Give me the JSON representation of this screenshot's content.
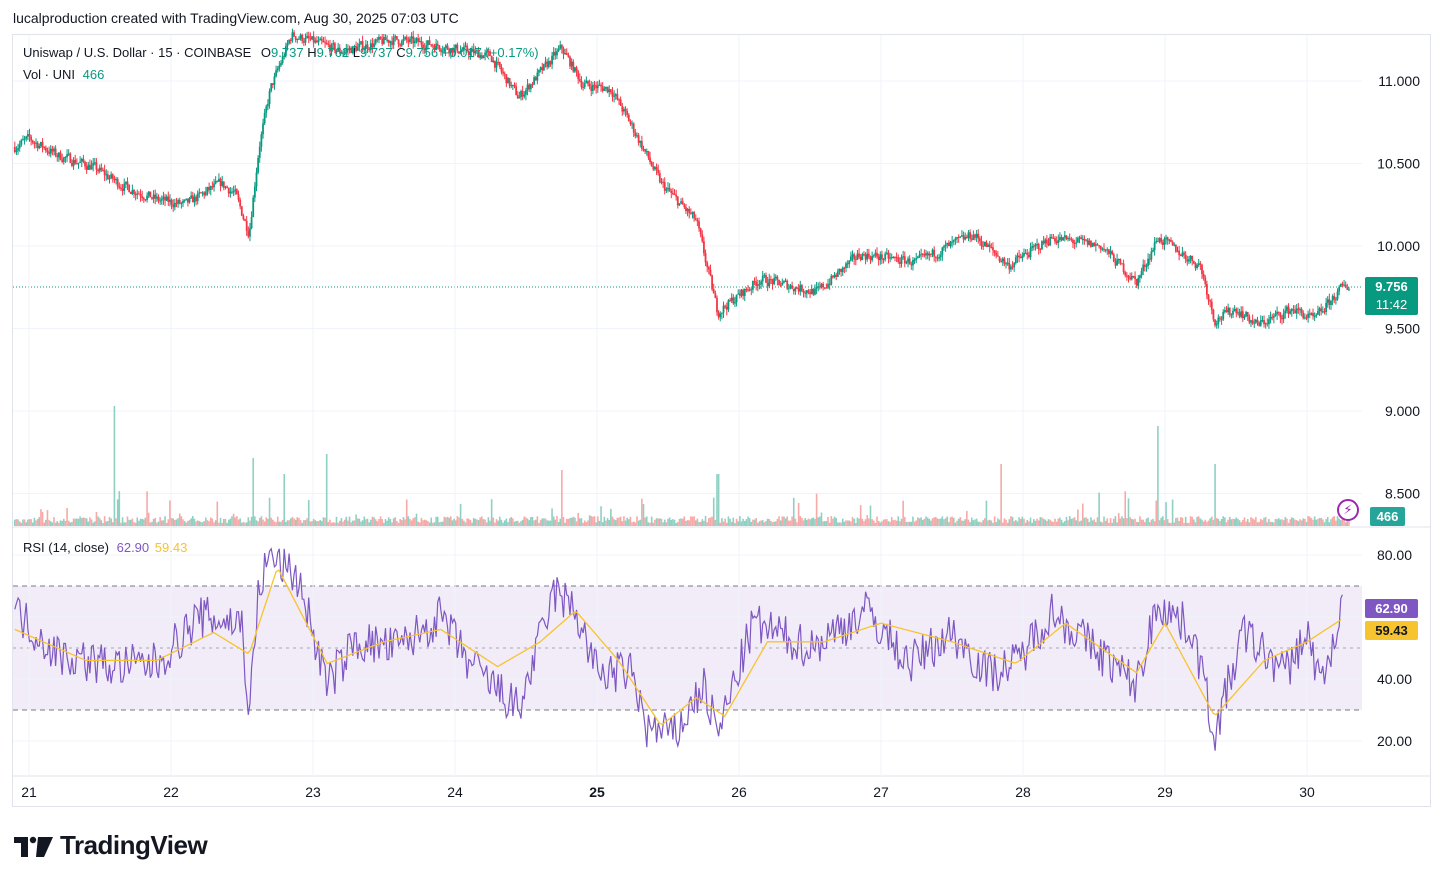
{
  "caption": "lucalproduction created with TradingView.com, Aug 30, 2025 07:03 UTC",
  "legend": {
    "symbol": "Uniswap / U.S. Dollar · 15 · COINBASE",
    "o_label": "O",
    "o_value": "9.737",
    "h_label": "H",
    "h_value": "9.762",
    "l_label": "L",
    "l_value": "9.737",
    "c_label": "C",
    "c_value": "9.756",
    "change": "+0.017 (+0.17%)",
    "vol_label": "Vol · UNI",
    "vol_value": "466",
    "rsi_label": "RSI (14, close)",
    "rsi_value": "62.90",
    "rsi_ma_value": "59.43"
  },
  "tags": {
    "price": "9.756",
    "countdown": "11:42",
    "volume": "466",
    "rsi": "62.90",
    "rsi_ma": "59.43"
  },
  "branding": "TradingView",
  "colors": {
    "up": "#089981",
    "down": "#f23645",
    "rsi": "#7e57c2",
    "rsi_ma": "#f7c32e",
    "rsi_band": "#ede7f6",
    "grid": "#f0f3fa",
    "vol_up": "#8fd0c3",
    "vol_down": "#f7a9a7"
  },
  "chart_data": [
    {
      "type": "candlestick",
      "title": "Uniswap / U.S. Dollar · 15 · COINBASE",
      "x_ticks": [
        "21",
        "22",
        "23",
        "24",
        "25",
        "26",
        "27",
        "28",
        "29",
        "30"
      ],
      "y_ticks": [
        "11.000",
        "10.500",
        "10.000",
        "9.500",
        "9.000",
        "8.500"
      ],
      "ylim": [
        8.3,
        11.3
      ],
      "last_price": 9.756,
      "price_path": [
        {
          "x": 20.9,
          "y": 10.6
        },
        {
          "x": 21.0,
          "y": 10.65
        },
        {
          "x": 21.2,
          "y": 10.55
        },
        {
          "x": 21.45,
          "y": 10.48
        },
        {
          "x": 21.65,
          "y": 10.37
        },
        {
          "x": 21.9,
          "y": 10.28
        },
        {
          "x": 22.1,
          "y": 10.25
        },
        {
          "x": 22.35,
          "y": 10.38
        },
        {
          "x": 22.45,
          "y": 10.32
        },
        {
          "x": 22.55,
          "y": 10.08
        },
        {
          "x": 22.62,
          "y": 10.6
        },
        {
          "x": 22.7,
          "y": 10.95
        },
        {
          "x": 22.85,
          "y": 11.28
        },
        {
          "x": 23.2,
          "y": 11.18
        },
        {
          "x": 23.55,
          "y": 11.25
        },
        {
          "x": 23.85,
          "y": 11.22
        },
        {
          "x": 24.25,
          "y": 11.15
        },
        {
          "x": 24.45,
          "y": 10.9
        },
        {
          "x": 24.75,
          "y": 11.2
        },
        {
          "x": 24.9,
          "y": 10.98
        },
        {
          "x": 25.1,
          "y": 10.95
        },
        {
          "x": 25.25,
          "y": 10.72
        },
        {
          "x": 25.45,
          "y": 10.38
        },
        {
          "x": 25.7,
          "y": 10.15
        },
        {
          "x": 25.85,
          "y": 9.6
        },
        {
          "x": 26.15,
          "y": 9.8
        },
        {
          "x": 26.55,
          "y": 9.72
        },
        {
          "x": 26.85,
          "y": 9.95
        },
        {
          "x": 27.25,
          "y": 9.9
        },
        {
          "x": 27.65,
          "y": 10.07
        },
        {
          "x": 27.9,
          "y": 9.88
        },
        {
          "x": 28.2,
          "y": 10.05
        },
        {
          "x": 28.55,
          "y": 10.0
        },
        {
          "x": 28.8,
          "y": 9.78
        },
        {
          "x": 28.95,
          "y": 10.05
        },
        {
          "x": 29.25,
          "y": 9.88
        },
        {
          "x": 29.35,
          "y": 9.55
        },
        {
          "x": 29.5,
          "y": 9.62
        },
        {
          "x": 29.65,
          "y": 9.52
        },
        {
          "x": 29.9,
          "y": 9.62
        },
        {
          "x": 30.05,
          "y": 9.55
        },
        {
          "x": 30.25,
          "y": 9.75
        },
        {
          "x": 30.3,
          "y": 9.756
        }
      ]
    },
    {
      "type": "bar",
      "title": "Vol · UNI",
      "last_value": 466,
      "volume_spikes": [
        {
          "x": 21.6,
          "value": 6.0
        },
        {
          "x": 22.58,
          "value": 3.4
        },
        {
          "x": 22.8,
          "value": 2.6
        },
        {
          "x": 23.1,
          "value": 3.6
        },
        {
          "x": 24.75,
          "value": 2.8
        },
        {
          "x": 25.85,
          "value": 2.6
        },
        {
          "x": 27.85,
          "value": 3.1
        },
        {
          "x": 28.95,
          "value": 5.0
        },
        {
          "x": 29.35,
          "value": 3.1
        }
      ]
    },
    {
      "type": "line",
      "title": "RSI (14, close)",
      "y_ticks": [
        "80.00",
        "40.00",
        "20.00"
      ],
      "ylim": [
        10,
        85
      ],
      "bands": [
        30,
        50,
        70
      ],
      "series": [
        {
          "name": "RSI",
          "last_value": 62.9,
          "path": [
            {
              "x": 20.9,
              "y": 62
            },
            {
              "x": 21.2,
              "y": 48
            },
            {
              "x": 21.6,
              "y": 44
            },
            {
              "x": 21.9,
              "y": 45
            },
            {
              "x": 22.2,
              "y": 60
            },
            {
              "x": 22.5,
              "y": 58
            },
            {
              "x": 22.55,
              "y": 28
            },
            {
              "x": 22.62,
              "y": 70
            },
            {
              "x": 22.7,
              "y": 80
            },
            {
              "x": 22.9,
              "y": 72
            },
            {
              "x": 23.1,
              "y": 38
            },
            {
              "x": 23.3,
              "y": 52
            },
            {
              "x": 23.6,
              "y": 50
            },
            {
              "x": 23.9,
              "y": 60
            },
            {
              "x": 24.1,
              "y": 45
            },
            {
              "x": 24.45,
              "y": 30
            },
            {
              "x": 24.7,
              "y": 68
            },
            {
              "x": 24.85,
              "y": 62
            },
            {
              "x": 25.0,
              "y": 42
            },
            {
              "x": 25.25,
              "y": 42
            },
            {
              "x": 25.35,
              "y": 24
            },
            {
              "x": 25.55,
              "y": 22
            },
            {
              "x": 25.75,
              "y": 38
            },
            {
              "x": 25.85,
              "y": 22
            },
            {
              "x": 26.1,
              "y": 58
            },
            {
              "x": 26.5,
              "y": 50
            },
            {
              "x": 26.9,
              "y": 62
            },
            {
              "x": 27.2,
              "y": 45
            },
            {
              "x": 27.5,
              "y": 55
            },
            {
              "x": 27.75,
              "y": 42
            },
            {
              "x": 27.95,
              "y": 45
            },
            {
              "x": 28.2,
              "y": 62
            },
            {
              "x": 28.55,
              "y": 48
            },
            {
              "x": 28.8,
              "y": 38
            },
            {
              "x": 28.95,
              "y": 65
            },
            {
              "x": 29.2,
              "y": 55
            },
            {
              "x": 29.35,
              "y": 22
            },
            {
              "x": 29.55,
              "y": 55
            },
            {
              "x": 29.85,
              "y": 42
            },
            {
              "x": 30.0,
              "y": 55
            },
            {
              "x": 30.1,
              "y": 38
            },
            {
              "x": 30.25,
              "y": 62.9
            }
          ]
        },
        {
          "name": "RSI-based MA",
          "last_value": 59.43,
          "path": [
            {
              "x": 20.9,
              "y": 56
            },
            {
              "x": 21.4,
              "y": 46
            },
            {
              "x": 21.9,
              "y": 46
            },
            {
              "x": 22.3,
              "y": 55
            },
            {
              "x": 22.55,
              "y": 48
            },
            {
              "x": 22.75,
              "y": 76
            },
            {
              "x": 23.1,
              "y": 45
            },
            {
              "x": 23.5,
              "y": 52
            },
            {
              "x": 23.9,
              "y": 56
            },
            {
              "x": 24.3,
              "y": 44
            },
            {
              "x": 24.6,
              "y": 52
            },
            {
              "x": 24.85,
              "y": 62
            },
            {
              "x": 25.15,
              "y": 46
            },
            {
              "x": 25.45,
              "y": 25
            },
            {
              "x": 25.7,
              "y": 34
            },
            {
              "x": 25.9,
              "y": 28
            },
            {
              "x": 26.2,
              "y": 52
            },
            {
              "x": 26.6,
              "y": 52
            },
            {
              "x": 27.0,
              "y": 58
            },
            {
              "x": 27.5,
              "y": 52
            },
            {
              "x": 27.95,
              "y": 45
            },
            {
              "x": 28.3,
              "y": 58
            },
            {
              "x": 28.8,
              "y": 42
            },
            {
              "x": 29.0,
              "y": 58
            },
            {
              "x": 29.35,
              "y": 28
            },
            {
              "x": 29.7,
              "y": 46
            },
            {
              "x": 30.0,
              "y": 52
            },
            {
              "x": 30.25,
              "y": 59.43
            }
          ]
        }
      ]
    }
  ]
}
